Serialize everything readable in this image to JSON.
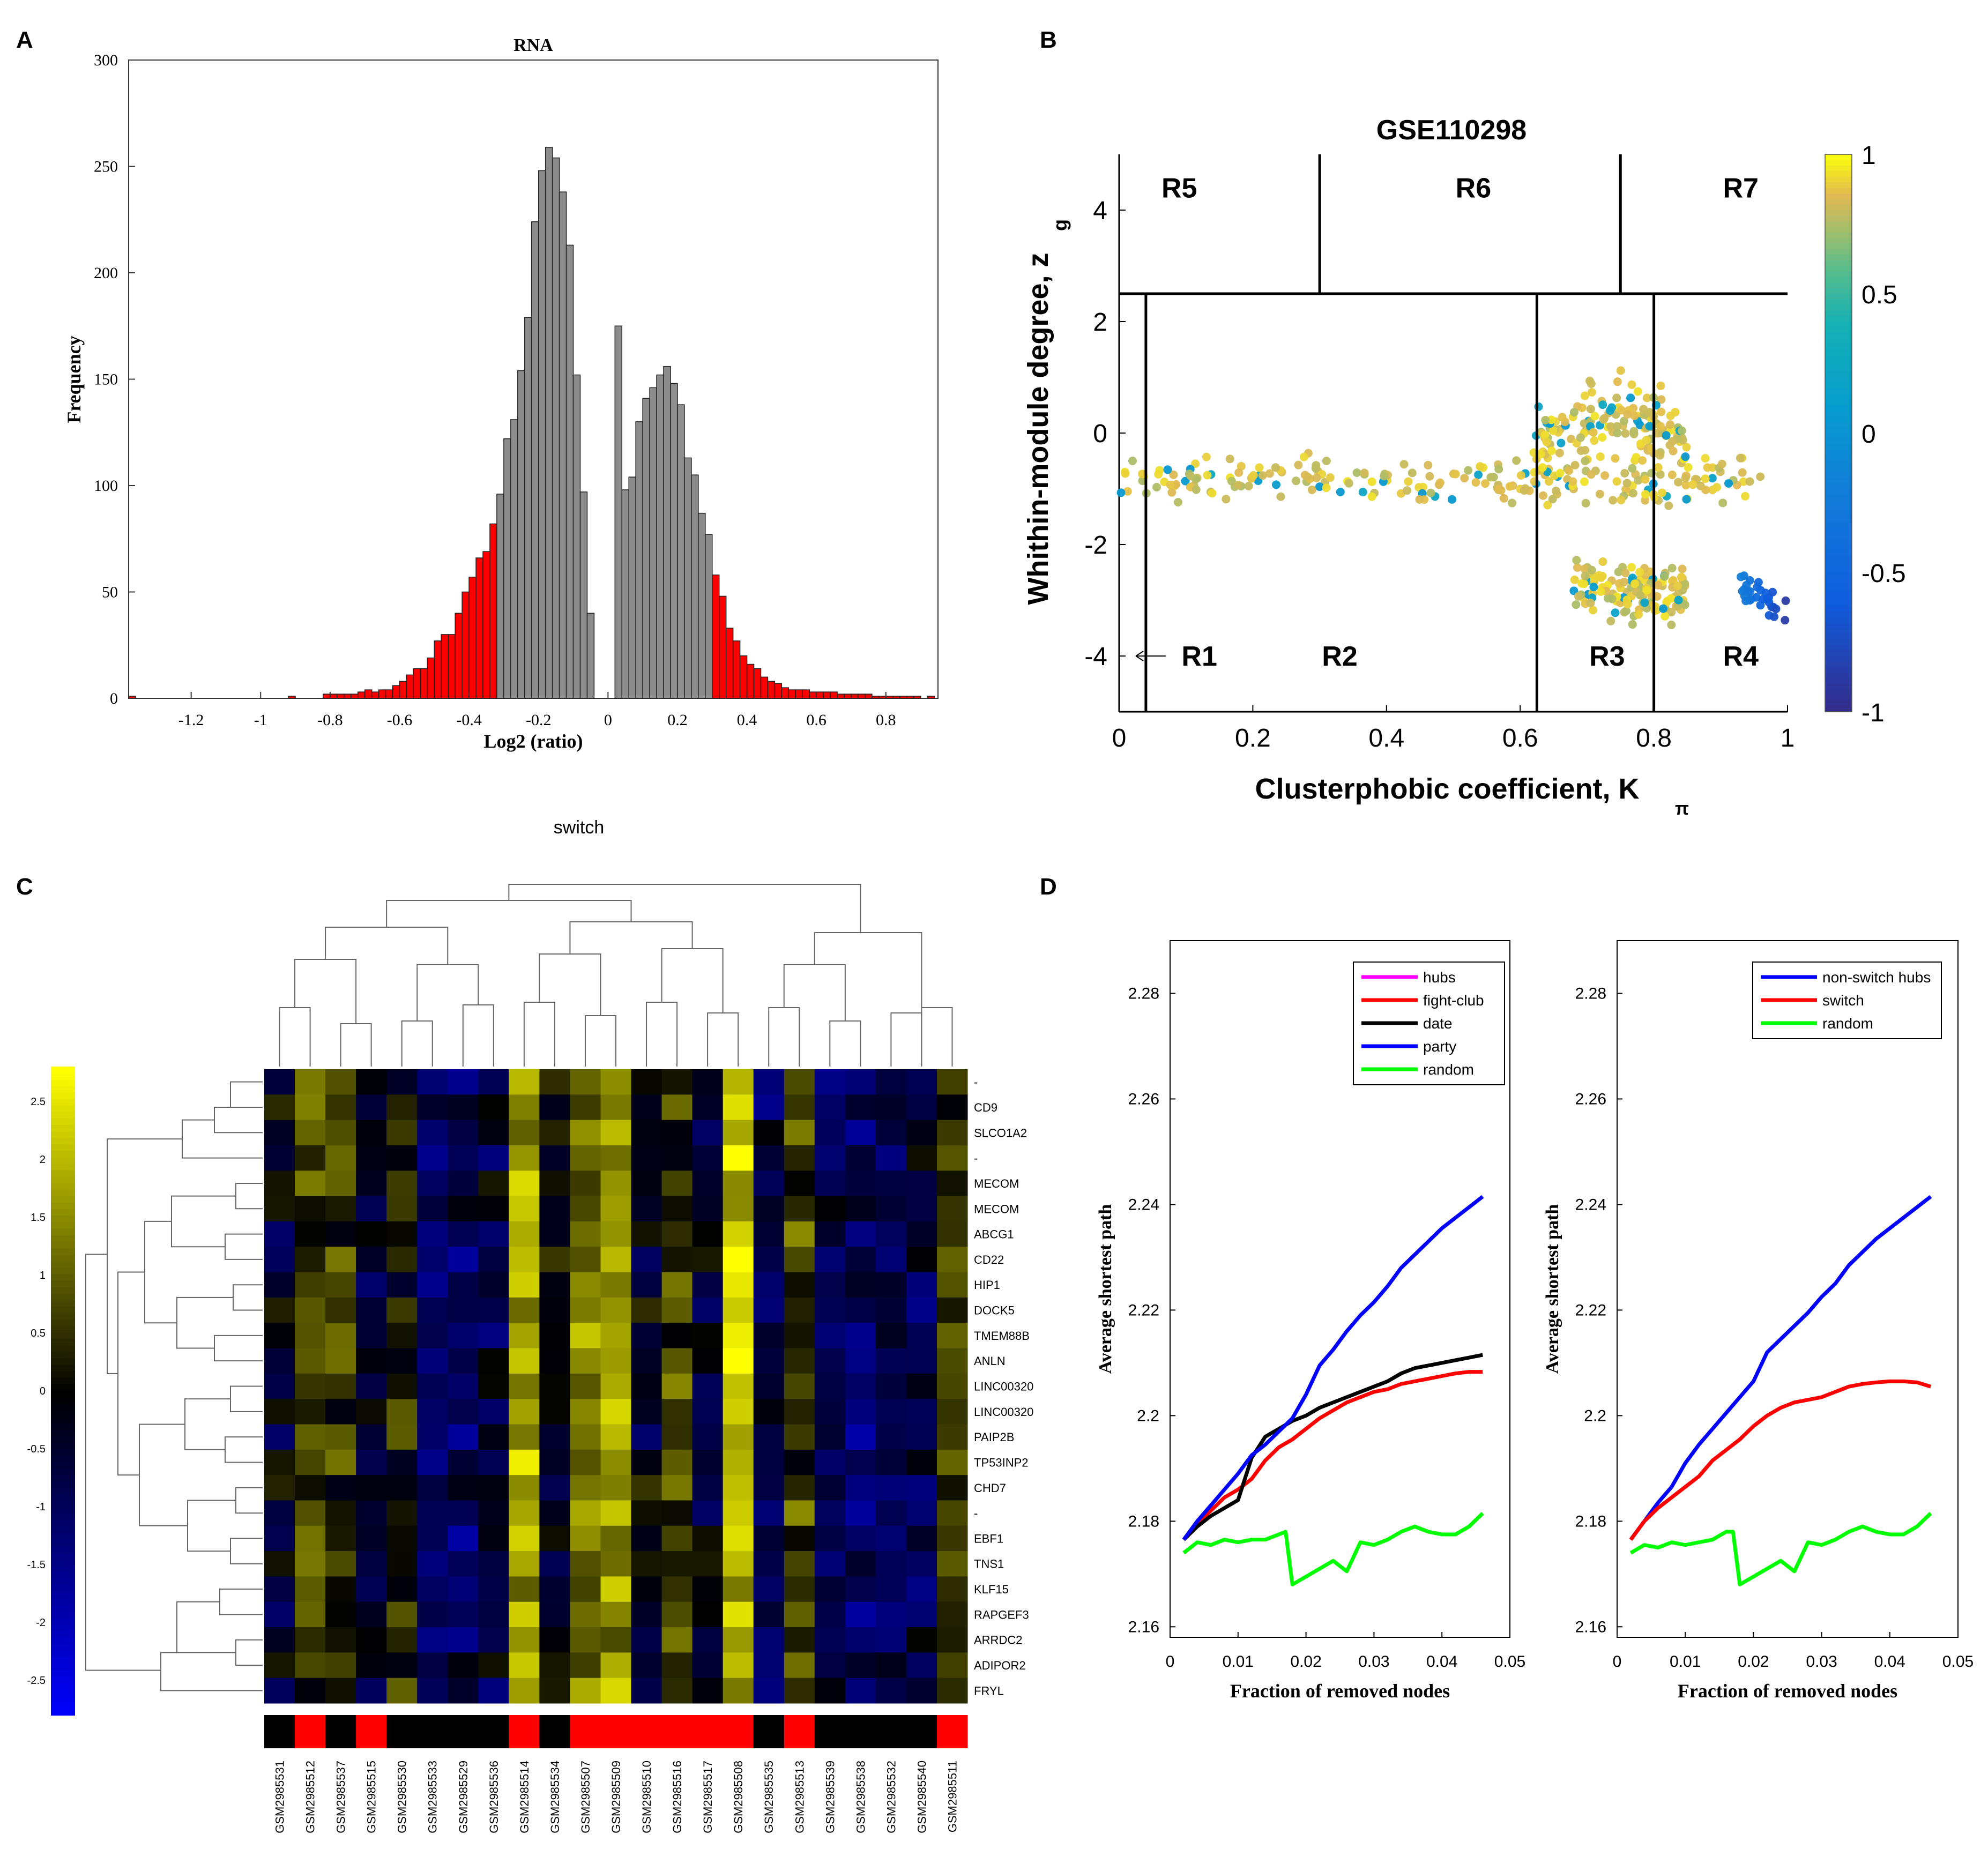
{
  "panels": {
    "A": {
      "letter": "A"
    },
    "B": {
      "letter": "B"
    },
    "C": {
      "letter": "C"
    },
    "D": {
      "letter": "D"
    }
  },
  "colors": {
    "histogram_gray": "#8c8c8c",
    "histogram_red": "#ff0000",
    "line_blue": "#0000ff",
    "line_red": "#ff0000",
    "line_black": "#000000",
    "line_green": "#00ff00",
    "line_magenta": "#ff00ff"
  },
  "chart_data": [
    {
      "id": "A",
      "type": "bar",
      "title": "RNA",
      "xlabel": "Log2 (ratio)",
      "ylabel": "Frequency",
      "caption": "switch",
      "xlim": [
        -1.38,
        0.95
      ],
      "ylim": [
        0,
        300
      ],
      "xticks": [
        "-1.2",
        "-1",
        "-0.8",
        "-0.6",
        "-0.4",
        "-0.2",
        "0",
        "0.2",
        "0.4",
        "0.6",
        "0.8"
      ],
      "xtick_values": [
        -1.2,
        -1,
        -0.8,
        -0.6,
        -0.4,
        -0.2,
        0,
        0.2,
        0.4,
        0.6,
        0.8
      ],
      "yticks": [
        "0",
        "50",
        "100",
        "150",
        "200",
        "250",
        "300"
      ],
      "ytick_values": [
        0,
        50,
        100,
        150,
        200,
        250,
        300
      ],
      "bin_width": 0.02,
      "bin_starts": [
        -1.38,
        -0.92,
        -0.82,
        -0.8,
        -0.78,
        -0.76,
        -0.74,
        -0.72,
        -0.7,
        -0.68,
        -0.66,
        -0.64,
        -0.62,
        -0.6,
        -0.58,
        -0.56,
        -0.54,
        -0.52,
        -0.5,
        -0.48,
        -0.46,
        -0.44,
        -0.42,
        -0.4,
        -0.38,
        -0.36,
        -0.34,
        -0.32,
        -0.3,
        -0.28,
        -0.26,
        -0.24,
        -0.22,
        -0.2,
        -0.18,
        -0.16,
        -0.14,
        -0.12,
        -0.1,
        -0.08,
        -0.06,
        0.02,
        0.04,
        0.06,
        0.08,
        0.1,
        0.12,
        0.14,
        0.16,
        0.18,
        0.2,
        0.22,
        0.24,
        0.26,
        0.28,
        0.3,
        0.32,
        0.34,
        0.36,
        0.38,
        0.4,
        0.42,
        0.44,
        0.46,
        0.48,
        0.5,
        0.52,
        0.54,
        0.56,
        0.58,
        0.6,
        0.62,
        0.64,
        0.66,
        0.68,
        0.7,
        0.72,
        0.74,
        0.76,
        0.78,
        0.8,
        0.82,
        0.84,
        0.86,
        0.88,
        0.92
      ],
      "counts": [
        1,
        1,
        2,
        2,
        2,
        2,
        2,
        3,
        4,
        3,
        4,
        4,
        6,
        8,
        11,
        14,
        14,
        19,
        27,
        30,
        30,
        40,
        50,
        57,
        66,
        69,
        82,
        96,
        122,
        131,
        154,
        179,
        224,
        248,
        259,
        254,
        238,
        213,
        152,
        97,
        40,
        175,
        98,
        104,
        130,
        141,
        146,
        152,
        156,
        148,
        138,
        113,
        105,
        87,
        77,
        58,
        48,
        33,
        27,
        20,
        16,
        14,
        10,
        8,
        7,
        5,
        4,
        4,
        4,
        3,
        3,
        3,
        3,
        2,
        2,
        2,
        2,
        2,
        1,
        1,
        1,
        1,
        1,
        1,
        1,
        1
      ],
      "red_threshold_low": -0.32,
      "red_threshold_high": 0.3
    },
    {
      "id": "B",
      "type": "scatter",
      "title": "GSE110298",
      "xlabel": "Clusterphobic coefficient, K",
      "xlabel_sub": "π",
      "ylabel": "Whithin-module degree, z",
      "ylabel_sub": "g",
      "xlim": [
        0,
        1
      ],
      "ylim": [
        -5,
        5
      ],
      "xticks": [
        "0",
        "0.2",
        "0.4",
        "0.6",
        "0.8",
        "1"
      ],
      "xtick_values": [
        0,
        0.2,
        0.4,
        0.6,
        0.8,
        1
      ],
      "yticks": [
        "-4",
        "-2",
        "0",
        "2",
        "4"
      ],
      "ytick_values": [
        -4,
        -2,
        0,
        2,
        4
      ],
      "colorbar_ticks": [
        "1",
        "0.5",
        "0",
        "-0.5",
        "-1"
      ],
      "colorbar_values": [
        1,
        0.5,
        0,
        -0.5,
        -1
      ],
      "region_labels": [
        {
          "text": "R5",
          "x": 0.09,
          "y": 4.4
        },
        {
          "text": "R6",
          "x": 0.53,
          "y": 4.4
        },
        {
          "text": "R7",
          "x": 0.93,
          "y": 4.4
        },
        {
          "text": "R1",
          "x": 0.12,
          "y": -4.0
        },
        {
          "text": "R2",
          "x": 0.33,
          "y": -4.0
        },
        {
          "text": "R3",
          "x": 0.73,
          "y": -4.0
        },
        {
          "text": "R4",
          "x": 0.93,
          "y": -4.0
        }
      ],
      "boundaries": {
        "z_line": 2.5,
        "lower_k": [
          0.04,
          0.625,
          0.8
        ],
        "upper_k": [
          0.3,
          0.75
        ]
      },
      "clusters": [
        {
          "name": "band",
          "k_range": [
            0.0,
            0.96
          ],
          "z_center": -0.85,
          "z_spread": 0.35,
          "n": 230,
          "color_value": 0.85
        },
        {
          "name": "hump",
          "k_range": [
            0.62,
            0.85
          ],
          "z_center": -0.2,
          "z_spread": 0.55,
          "n": 160,
          "color_value": 0.85
        },
        {
          "name": "lower",
          "k_range": [
            0.68,
            0.85
          ],
          "z_center": -2.85,
          "z_spread": 0.45,
          "n": 140,
          "color_value": 0.85
        },
        {
          "name": "tail",
          "k_range": [
            0.93,
            1.0
          ],
          "z_center": -2.75,
          "z_spread": 0.2,
          "n": 30,
          "color_value": -0.4
        }
      ]
    },
    {
      "id": "C",
      "type": "heatmap",
      "rows": [
        "-",
        "CD9",
        "SLCO1A2",
        "-",
        "MECOM",
        "MECOM",
        "ABCG1",
        "CD22",
        "HIP1",
        "DOCK5",
        "TMEM88B",
        "ANLN",
        "LINC00320",
        "LINC00320",
        "PAIP2B",
        "TP53INP2",
        "CHD7",
        "-",
        "EBF1",
        "TNS1",
        "KLF15",
        "RAPGEF3",
        "ARRDC2",
        "ADIPOR2",
        "FRYL"
      ],
      "columns": [
        "GSM2985531",
        "GSM2985512",
        "GSM2985537",
        "GSM2985515",
        "GSM2985530",
        "GSM2985533",
        "GSM2985529",
        "GSM2985536",
        "GSM2985514",
        "GSM2985534",
        "GSM2985507",
        "GSM2985509",
        "GSM2985510",
        "GSM2985516",
        "GSM2985517",
        "GSM2985508",
        "GSM2985535",
        "GSM2985513",
        "GSM2985539",
        "GSM2985538",
        "GSM2985532",
        "GSM2985540",
        "GSM2985511"
      ],
      "colorbar_ticks": [
        "2.5",
        "2",
        "1.5",
        "1",
        "0.5",
        "0",
        "-0.5",
        "-1",
        "-1.5",
        "-2",
        "-2.5"
      ],
      "colorbar_values": [
        2.5,
        2,
        1.5,
        1,
        0.5,
        0,
        -0.5,
        -1,
        -1.5,
        -2,
        -2.5
      ],
      "column_means": [
        -0.4,
        0.7,
        0.5,
        -0.4,
        0.3,
        -0.9,
        -1.0,
        -0.6,
        1.8,
        -0.2,
        1.3,
        1.7,
        -0.3,
        0.6,
        -0.4,
        2.1,
        -0.8,
        0.7,
        -0.9,
        -1.0,
        -0.8,
        -0.7,
        0.6
      ],
      "class_strip": [
        0,
        1,
        0,
        1,
        0,
        0,
        0,
        0,
        1,
        0,
        1,
        1,
        1,
        1,
        1,
        1,
        0,
        1,
        0,
        0,
        0,
        0,
        1
      ]
    },
    {
      "id": "D-left",
      "type": "line",
      "xlabel": "Fraction of removed nodes",
      "ylabel": "Average shortest path",
      "xlim": [
        0,
        0.05
      ],
      "ylim": [
        2.158,
        2.29
      ],
      "xticks": [
        "0",
        "0.01",
        "0.02",
        "0.03",
        "0.04",
        "0.05"
      ],
      "xtick_values": [
        0,
        0.01,
        0.02,
        0.03,
        0.04,
        0.05
      ],
      "yticks": [
        "2.16",
        "2.18",
        "2.2",
        "2.22",
        "2.24",
        "2.26",
        "2.28"
      ],
      "ytick_values": [
        2.16,
        2.18,
        2.2,
        2.22,
        2.24,
        2.26,
        2.28
      ],
      "series": [
        {
          "name": "hubs",
          "color": "#ff00ff",
          "x": [],
          "y": []
        },
        {
          "name": "fight-club",
          "color": "#ff0000",
          "x": [
            0.002,
            0.004,
            0.006,
            0.008,
            0.01,
            0.012,
            0.014,
            0.016,
            0.018,
            0.02,
            0.022,
            0.024,
            0.026,
            0.028,
            0.03,
            0.032,
            0.034,
            0.036,
            0.038,
            0.04,
            0.042,
            0.044,
            0.046
          ],
          "y": [
            2.1765,
            2.1795,
            2.182,
            2.1845,
            2.186,
            2.188,
            2.1915,
            2.194,
            2.1955,
            2.1975,
            2.1995,
            2.201,
            2.2025,
            2.2035,
            2.2045,
            2.205,
            2.206,
            2.2065,
            2.207,
            2.2075,
            2.208,
            2.2083,
            2.2083
          ]
        },
        {
          "name": "date",
          "color": "#000000",
          "x": [
            0.002,
            0.004,
            0.006,
            0.008,
            0.01,
            0.012,
            0.014,
            0.016,
            0.018,
            0.02,
            0.022,
            0.024,
            0.026,
            0.028,
            0.03,
            0.032,
            0.034,
            0.036,
            0.038,
            0.04,
            0.042,
            0.044,
            0.046
          ],
          "y": [
            2.1765,
            2.179,
            2.181,
            2.1825,
            2.184,
            2.192,
            2.196,
            2.1975,
            2.199,
            2.2,
            2.2015,
            2.2025,
            2.2035,
            2.2045,
            2.2055,
            2.2065,
            2.208,
            2.209,
            2.2095,
            2.21,
            2.2105,
            2.211,
            2.2115
          ]
        },
        {
          "name": "party",
          "color": "#0000ff",
          "x": [
            0.002,
            0.004,
            0.006,
            0.008,
            0.01,
            0.012,
            0.014,
            0.016,
            0.018,
            0.02,
            0.022,
            0.024,
            0.026,
            0.028,
            0.03,
            0.032,
            0.034,
            0.036,
            0.038,
            0.04,
            0.042,
            0.044,
            0.046
          ],
          "y": [
            2.1765,
            2.18,
            2.183,
            2.186,
            2.189,
            2.1925,
            2.1945,
            2.197,
            2.1995,
            2.204,
            2.2095,
            2.2125,
            2.216,
            2.219,
            2.2215,
            2.2245,
            2.228,
            2.2305,
            2.233,
            2.2355,
            2.2375,
            2.2395,
            2.2415
          ]
        },
        {
          "name": "random",
          "color": "#00ff00",
          "x": [
            0.002,
            0.004,
            0.006,
            0.008,
            0.01,
            0.012,
            0.014,
            0.016,
            0.017,
            0.018,
            0.02,
            0.022,
            0.024,
            0.026,
            0.028,
            0.03,
            0.032,
            0.034,
            0.036,
            0.038,
            0.04,
            0.042,
            0.044,
            0.046
          ],
          "y": [
            2.174,
            2.176,
            2.1755,
            2.1765,
            2.176,
            2.1765,
            2.1765,
            2.1775,
            2.178,
            2.168,
            2.1695,
            2.171,
            2.1725,
            2.1705,
            2.176,
            2.1755,
            2.1765,
            2.178,
            2.179,
            2.178,
            2.1775,
            2.1775,
            2.179,
            2.1815
          ]
        }
      ]
    },
    {
      "id": "D-right",
      "type": "line",
      "xlabel": "Fraction of removed nodes",
      "ylabel": "Average shortest path",
      "xlim": [
        0,
        0.05
      ],
      "ylim": [
        2.158,
        2.29
      ],
      "xticks": [
        "0",
        "0.01",
        "0.02",
        "0.03",
        "0.04",
        "0.05"
      ],
      "xtick_values": [
        0,
        0.01,
        0.02,
        0.03,
        0.04,
        0.05
      ],
      "yticks": [
        "2.16",
        "2.18",
        "2.2",
        "2.22",
        "2.24",
        "2.26",
        "2.28"
      ],
      "ytick_values": [
        2.16,
        2.18,
        2.2,
        2.22,
        2.24,
        2.26,
        2.28
      ],
      "series": [
        {
          "name": "non-switch hubs",
          "color": "#0000ff",
          "x": [
            0.002,
            0.004,
            0.006,
            0.008,
            0.01,
            0.012,
            0.014,
            0.016,
            0.018,
            0.02,
            0.022,
            0.024,
            0.026,
            0.028,
            0.03,
            0.032,
            0.034,
            0.036,
            0.038,
            0.04,
            0.042,
            0.044,
            0.046
          ],
          "y": [
            2.1765,
            2.18,
            2.1835,
            2.1865,
            2.191,
            2.1945,
            2.1975,
            2.2005,
            2.2035,
            2.2065,
            2.212,
            2.2145,
            2.217,
            2.2195,
            2.2225,
            2.225,
            2.2285,
            2.231,
            2.2335,
            2.2355,
            2.2375,
            2.2395,
            2.2415
          ]
        },
        {
          "name": "switch",
          "color": "#ff0000",
          "x": [
            0.002,
            0.004,
            0.006,
            0.008,
            0.01,
            0.012,
            0.014,
            0.016,
            0.018,
            0.02,
            0.022,
            0.024,
            0.026,
            0.028,
            0.03,
            0.032,
            0.034,
            0.036,
            0.038,
            0.04,
            0.042,
            0.044,
            0.046
          ],
          "y": [
            2.1765,
            2.18,
            2.1825,
            2.1845,
            2.1865,
            2.1885,
            2.1915,
            2.1935,
            2.1955,
            2.198,
            2.2,
            2.2015,
            2.2025,
            2.203,
            2.2035,
            2.2045,
            2.2055,
            2.206,
            2.2063,
            2.2065,
            2.2065,
            2.2063,
            2.2055
          ]
        },
        {
          "name": "random",
          "color": "#00ff00",
          "x": [
            0.002,
            0.004,
            0.006,
            0.008,
            0.01,
            0.012,
            0.014,
            0.016,
            0.017,
            0.018,
            0.02,
            0.022,
            0.024,
            0.026,
            0.028,
            0.03,
            0.032,
            0.034,
            0.036,
            0.038,
            0.04,
            0.042,
            0.044,
            0.046
          ],
          "y": [
            2.174,
            2.1755,
            2.175,
            2.176,
            2.1755,
            2.176,
            2.1765,
            2.178,
            2.178,
            2.168,
            2.1695,
            2.171,
            2.1725,
            2.1705,
            2.176,
            2.1755,
            2.1765,
            2.178,
            2.179,
            2.178,
            2.1775,
            2.1775,
            2.179,
            2.1815
          ]
        }
      ]
    }
  ]
}
